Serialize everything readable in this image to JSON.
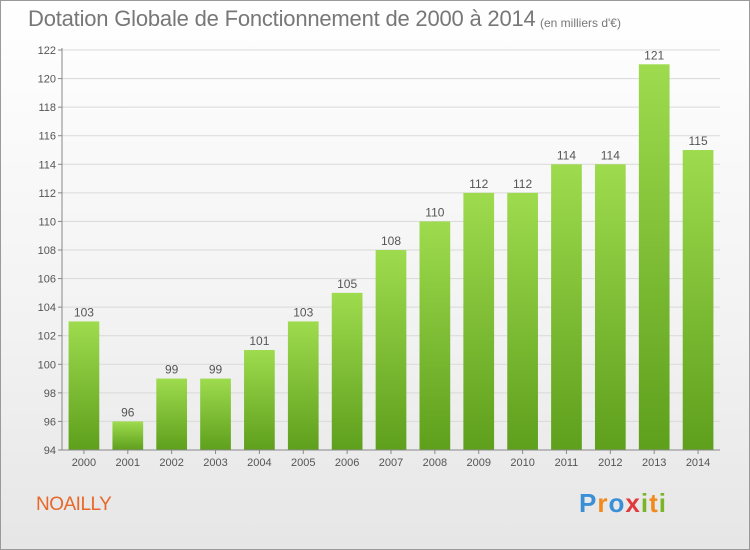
{
  "header": {
    "title": "Dotation Globale de Fonctionnement de 2000 à 2014",
    "unit": "(en milliers d'€)"
  },
  "footer": {
    "commune": "NOAILLY",
    "brand": "Proxiti",
    "brand_letters": [
      {
        "char": "P",
        "color": "#3a8fd6"
      },
      {
        "char": "r",
        "color": "#f08a1c"
      },
      {
        "char": "o",
        "color": "#3a8fd6"
      },
      {
        "char": "x",
        "color": "#e23a3a"
      },
      {
        "char": "i",
        "color": "#7ab529"
      },
      {
        "char": "t",
        "color": "#f08a1c"
      },
      {
        "char": "i",
        "color": "#7ab529"
      }
    ]
  },
  "colors": {
    "bar_light": "#9edb4e",
    "bar_dark": "#5e9f1c",
    "text": "#555555",
    "grid": "#d9d9d9",
    "axis": "#888888"
  },
  "chart_data": {
    "type": "bar",
    "title": "Dotation Globale de Fonctionnement de 2000 à 2014",
    "subtitle": "(en milliers d'€)",
    "categories": [
      "2000",
      "2001",
      "2002",
      "2003",
      "2004",
      "2005",
      "2006",
      "2007",
      "2008",
      "2009",
      "2010",
      "2011",
      "2012",
      "2013",
      "2014"
    ],
    "values": [
      103,
      96,
      99,
      99,
      101,
      103,
      105,
      108,
      110,
      112,
      112,
      114,
      114,
      121,
      115
    ],
    "yticks": [
      94,
      96,
      98,
      100,
      102,
      104,
      106,
      108,
      110,
      112,
      114,
      116,
      118,
      120,
      122
    ],
    "ylim": [
      94,
      122
    ],
    "grid": true,
    "xlabel": "",
    "ylabel": ""
  }
}
